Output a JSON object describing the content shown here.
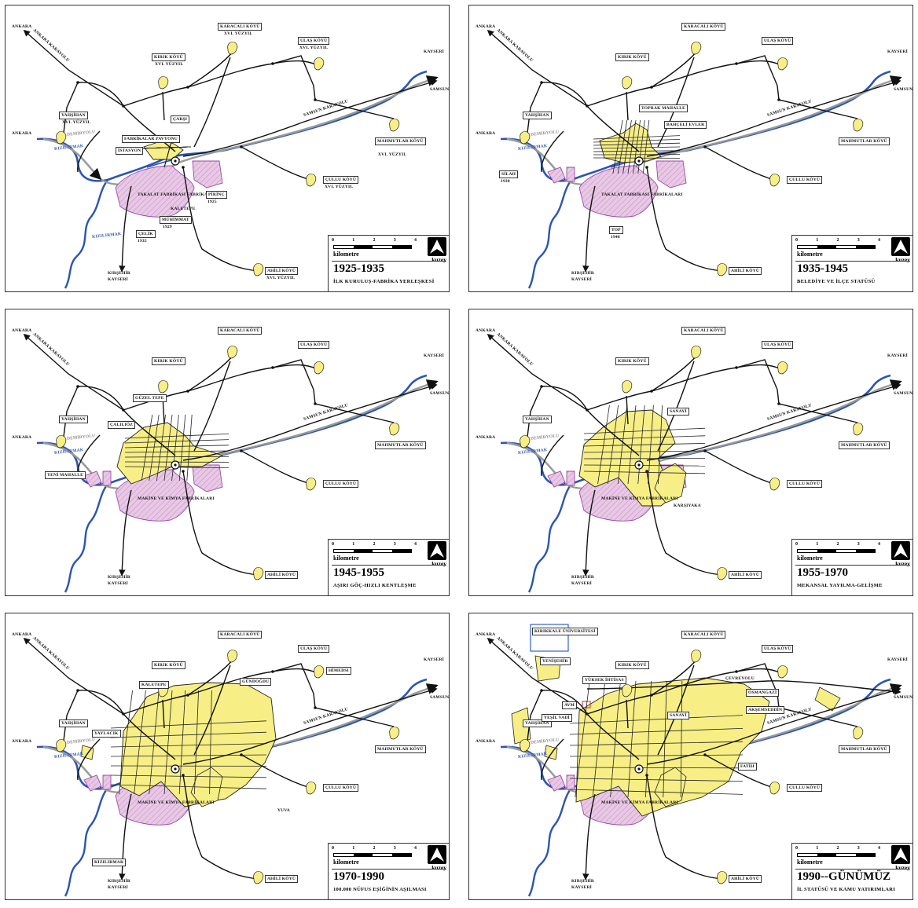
{
  "colors": {
    "river": "#2a55b5",
    "settlement": "#f7ef86",
    "industry": "#e8c8e4",
    "industry_edge": "#9a4aa6",
    "road": "#111",
    "rail": "#9a9a9a",
    "uni": "#2f5fd6"
  },
  "scale": {
    "ticks": [
      "0",
      "1",
      "2",
      "3",
      "4"
    ],
    "unit": "kilometre",
    "north": "kuzey"
  },
  "panels": [
    {
      "period": "1925-1935",
      "subtitle": "İLK KURULUŞ-FABRİKA YERLEŞKESİ",
      "labels": {
        "ankara_top": "ANKARA",
        "ankara_west": "ANKARA",
        "kayseri_ne": "KAYSERİ",
        "samsun": "SAMSUN",
        "kirsehir": "KIRŞEHİR",
        "kayseri_s": "KAYSERİ",
        "ankara_karayolu": "ANKARA KARAYOLU",
        "samsun_karayolu": "SAMSUN KARAYOLU",
        "demiryolu": "DEMİRYOLU",
        "kizilirmak": "KIZILIRMAK",
        "kizilirmak2": "KIZILIRMAK",
        "karacali": "KARACALI KÖYÜ",
        "karacali_sub": "XVI. YÜZYIL",
        "ulas": "ULAŞ KÖYÜ",
        "ulas_sub": "XVI. YÜZYIL",
        "kirik": "KIRIK KÖYÜ",
        "kirik_sub": "XVI. YÜZYIL",
        "yahsihan": "YAHŞİHAN",
        "yahsihan_sub": "XVI. YÜZYIL",
        "mahmutlar": "MAHMUTLAR KÖYÜ",
        "mahmutlar_sub": "XVI. YÜZYIL",
        "cullu": "ÇULLU KÖYÜ",
        "cullu_sub": "XVI. YÜZYIL",
        "ahili": "AHİLİ KÖYÜ",
        "ahili_sub": "XVI. YÜZYIL",
        "carsi": "ÇARŞI",
        "fabrikalar_pavyonu": "FABRİKALAR PAVYONU",
        "istasyon": "İSTASYON",
        "kaletepe": "KALETEPE",
        "fabrika_area": "TAKALAT FABRİKASI FABRİKALARI",
        "muhimmat": "MÜHİMMAT",
        "muhimmat_yr": "1929",
        "celik": "ÇELİK",
        "celik_yr": "1935",
        "pirinc": "PİRİNÇ",
        "pirinc_yr": "1925"
      }
    },
    {
      "period": "1935-1945",
      "subtitle": "BELEDİYE VE İLÇE STATÜSÜ",
      "labels": {
        "ankara_top": "ANKARA",
        "ankara_west": "ANKARA",
        "kayseri_ne": "KAYSERİ",
        "samsun": "SAMSUN",
        "kirsehir": "KIRŞEHİR",
        "kayseri_s": "KAYSERİ",
        "ankara_karayolu": "ANKARA KARAYOLU",
        "samsun_karayolu": "SAMSUN KARAYOLU",
        "demiryolu": "DEMİRYOLU",
        "kizilirmak": "KIZILIRMAK",
        "karacali": "KARACALI KÖYÜ",
        "ulas": "ULAŞ KÖYÜ",
        "kirik": "KIRIK KÖYÜ",
        "yahsihan": "YAHŞİHAN",
        "mahmutlar": "MAHMUTLAR KÖYÜ",
        "cullu": "ÇULLU KÖYÜ",
        "ahili": "AHİLİ KÖYÜ",
        "toprak": "TOPRAK MAHALLE",
        "bahceli": "BAHÇELİ EVLER",
        "silah": "SİLAH",
        "silah_yr": "1938",
        "top": "TOP",
        "top_yr": "1940",
        "fabrika_area": "TAKALAT FABRİKASI FABRİKALARI"
      }
    },
    {
      "period": "1945-1955",
      "subtitle": "AŞIRI GÖÇ-HIZLI KENTLEŞME",
      "labels": {
        "ankara_top": "ANKARA",
        "ankara_west": "ANKARA",
        "kayseri_ne": "KAYSERİ",
        "samsun": "SAMSUN",
        "kirsehir": "KIRŞEHİR",
        "kayseri_s": "KAYSERİ",
        "ankara_karayolu": "ANKARA KARAYOLU",
        "samsun_karayolu": "SAMSUN KARAYOLU",
        "demiryolu": "DEMİRYOLU",
        "kizilirmak": "KIZILIRMAK",
        "karacali": "KARACALI KÖYÜ",
        "ulas": "ULAŞ KÖYÜ",
        "kirik": "KIRIK KÖYÜ",
        "yahsihan": "YAHŞİHAN",
        "mahmutlar": "MAHMUTLAR KÖYÜ",
        "cullu": "ÇULLU KÖYÜ",
        "ahili": "AHİLİ KÖYÜ",
        "guzeltepe": "GÜZEL TEPE",
        "calilioz": "ÇALILIÖZ",
        "yeni_mahalle": "YENİ MAHALLE",
        "fabrika_area": "MAKİNE VE KİMYA FABRİKALARI"
      }
    },
    {
      "period": "1955-1970",
      "subtitle": "MEKANSAL YAYILMA-GELİŞME",
      "labels": {
        "ankara_top": "ANKARA",
        "ankara_west": "ANKARA",
        "kayseri_ne": "KAYSERİ",
        "samsun": "SAMSUN",
        "kirsehir": "KIRŞEHİR",
        "kayseri_s": "KAYSERİ",
        "ankara_karayolu": "ANKARA KARAYOLU",
        "samsun_karayolu": "SAMSUN KARAYOLU",
        "demiryolu": "DEMİRYOLU",
        "kizilirmak": "KIZILIRMAK",
        "karacali": "KARACALI KÖYÜ",
        "ulas": "ULAŞ KÖYÜ",
        "kirik": "KIRIK KÖYÜ",
        "yahsihan": "YAHŞİHAN",
        "mahmutlar": "MAHMUTLAR KÖYÜ",
        "cullu": "ÇULLU KÖYÜ",
        "ahili": "AHİLİ KÖYÜ",
        "sanayi": "SANAYİ",
        "karsiyaka": "KARŞIYAKA",
        "fabrika_area": "MAKİNE VE KİMYA FABRİKALARI"
      }
    },
    {
      "period": "1970-1990",
      "subtitle": "100.000 NÜFUS EŞİĞİNİN AŞILMASI",
      "labels": {
        "ankara_top": "ANKARA",
        "ankara_west": "ANKARA",
        "kayseri_ne": "KAYSERİ",
        "samsun": "SAMSUN",
        "kirsehir": "KIRŞEHİR",
        "kayseri_s": "KAYSERİ",
        "ankara_karayolu": "ANKARA KARAYOLU",
        "samsun_karayolu": "SAMSUN KARAYOLU",
        "demiryolu": "DEMİRYOLU",
        "kizilirmak": "KIZILIRMAK",
        "karacali": "KARACALI KÖYÜ",
        "ulas": "ULAŞ KÖYÜ",
        "kirik": "KIRIK KÖYÜ",
        "yahsihan": "YAHŞİHAN",
        "mahmutlar": "MAHMUTLAR KÖYÜ",
        "cullu": "ÇULLU KÖYÜ",
        "ahili": "AHİLİ KÖYÜ",
        "kaletepe": "KALETEPE",
        "gundogdu": "GÜNDOĞDU",
        "hisarmesi": "HİMEDSI",
        "yaylacik": "YAYLACIK",
        "yuva": "YUVA",
        "kizilirmak_district": "KIZILIRMAK",
        "fabrika_area": "MAKİNE VE KİMYA FABRİKALARI"
      }
    },
    {
      "period": "1990--GÜNÜMÜZ",
      "subtitle": "İL STATÜSÜ VE KAMU YATIRIMLARI",
      "labels": {
        "ankara_top": "ANKARA",
        "ankara_west": "ANKARA",
        "kayseri_ne": "KAYSERİ",
        "samsun": "SAMSUN",
        "kirsehir": "KIRŞEHİR",
        "kayseri_s": "KAYSERİ",
        "ankara_karayolu": "ANKARA KARAYOLU",
        "samsun_karayolu": "SAMSUN KARAYOLU",
        "demiryolu": "DEMİRYOLU",
        "kizilirmak": "KIZILIRMAK",
        "cevreyolu": "ÇEVREYOLU",
        "karacali": "KARACALI KÖYÜ",
        "ulas": "ULAŞ KÖYÜ",
        "kirik": "KIRIK KÖYÜ",
        "yahsihan": "YAHŞİHAN",
        "mahmutlar": "MAHMUTLAR KÖYÜ",
        "cullu": "ÇULLU KÖYÜ",
        "ahili": "AHİLİ KÖYÜ",
        "universite": "KIRIKKALE ÜNİVERSİTESİ",
        "yenisehir": "YENİŞEHİR",
        "yuksek_ihtisas": "YÜKSEK İHTİSAS",
        "sanayi": "SANAYİ",
        "avm": "AVM",
        "yesil_vadi": "YEŞİL VADİ",
        "osmangazi": "OSMANGAZİ",
        "aksemseddin": "AKŞEMSEDDİN",
        "fatih": "FATİH",
        "fabrika_area": "MAKİNE VE KİMYA FABRİKALARI"
      }
    }
  ]
}
